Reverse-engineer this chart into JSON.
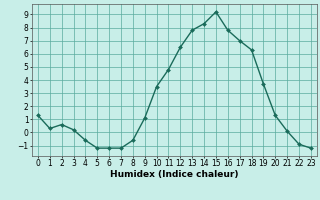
{
  "x": [
    0,
    1,
    2,
    3,
    4,
    5,
    6,
    7,
    8,
    9,
    10,
    11,
    12,
    13,
    14,
    15,
    16,
    17,
    18,
    19,
    20,
    21,
    22,
    23
  ],
  "y": [
    1.3,
    0.3,
    0.6,
    0.2,
    -0.6,
    -1.2,
    -1.2,
    -1.2,
    -0.6,
    1.1,
    3.5,
    4.8,
    6.5,
    7.8,
    8.3,
    9.2,
    7.8,
    7.0,
    6.3,
    3.7,
    1.3,
    0.1,
    -0.9,
    -1.2
  ],
  "line_color": "#1a6b5a",
  "marker": "D",
  "markersize": 2.0,
  "linewidth": 1.0,
  "xlabel": "Humidex (Indice chaleur)",
  "xlabel_fontsize": 6.5,
  "xlabel_fontweight": "bold",
  "bg_color": "#c8eee8",
  "grid_color": "#5aab9e",
  "xlim": [
    -0.5,
    23.5
  ],
  "ylim": [
    -1.8,
    9.8
  ],
  "yticks": [
    -1,
    0,
    1,
    2,
    3,
    4,
    5,
    6,
    7,
    8,
    9
  ],
  "xticks": [
    0,
    1,
    2,
    3,
    4,
    5,
    6,
    7,
    8,
    9,
    10,
    11,
    12,
    13,
    14,
    15,
    16,
    17,
    18,
    19,
    20,
    21,
    22,
    23
  ],
  "tick_fontsize": 5.5,
  "figsize": [
    3.2,
    2.0
  ],
  "dpi": 100
}
